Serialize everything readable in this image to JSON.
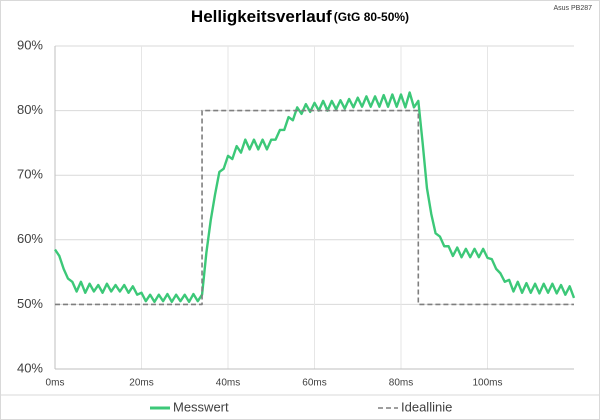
{
  "chart_data": {
    "type": "line",
    "title": "Helligkeitsverlauf",
    "subtitle": "(GtG 80-50%)",
    "source": "Asus PB287",
    "xlim": [
      0,
      120
    ],
    "xticks": [
      {
        "value": 0,
        "label": "0ms"
      },
      {
        "value": 20,
        "label": "20ms"
      },
      {
        "value": 40,
        "label": "40ms"
      },
      {
        "value": 60,
        "label": "60ms"
      },
      {
        "value": 80,
        "label": "80ms"
      },
      {
        "value": 100,
        "label": "100ms"
      }
    ],
    "ylim": [
      40,
      90
    ],
    "yticks": [
      {
        "value": 40,
        "label": "40%"
      },
      {
        "value": 50,
        "label": "50%"
      },
      {
        "value": 60,
        "label": "60%"
      },
      {
        "value": 70,
        "label": "70%"
      },
      {
        "value": 80,
        "label": "80%"
      },
      {
        "value": 90,
        "label": "90%"
      }
    ],
    "grid": true,
    "legend": "bottom",
    "series": [
      {
        "name": "Messwert",
        "color": "#3cc878",
        "dashed": false,
        "x": [
          0,
          1,
          2,
          3,
          4,
          5,
          6,
          7,
          8,
          9,
          10,
          11,
          12,
          13,
          14,
          15,
          16,
          17,
          18,
          19,
          20,
          21,
          22,
          23,
          24,
          25,
          26,
          27,
          28,
          29,
          30,
          31,
          32,
          33,
          34,
          35,
          36,
          37,
          38,
          39,
          40,
          41,
          42,
          43,
          44,
          45,
          46,
          47,
          48,
          49,
          50,
          51,
          52,
          53,
          54,
          55,
          56,
          57,
          58,
          59,
          60,
          61,
          62,
          63,
          64,
          65,
          66,
          67,
          68,
          69,
          70,
          71,
          72,
          73,
          74,
          75,
          76,
          77,
          78,
          79,
          80,
          81,
          82,
          83,
          84,
          85,
          86,
          87,
          88,
          89,
          90,
          91,
          92,
          93,
          94,
          95,
          96,
          97,
          98,
          99,
          100,
          101,
          102,
          103,
          104,
          105,
          106,
          107,
          108,
          109,
          110,
          111,
          112,
          113,
          114,
          115,
          116,
          117,
          118,
          119,
          120
        ],
        "values": [
          58.5,
          57.5,
          55.5,
          54,
          53.5,
          52,
          53.5,
          51.8,
          53.2,
          52,
          53,
          51.8,
          53.2,
          52,
          53,
          52,
          53,
          51.8,
          52.8,
          51.5,
          51.8,
          50.5,
          51.5,
          50.4,
          51.5,
          50.5,
          51.6,
          50.4,
          51.5,
          50.5,
          51.5,
          50.4,
          51.6,
          50.5,
          51.5,
          58,
          63,
          67,
          70.5,
          71,
          73,
          72.5,
          74.5,
          73.5,
          75.5,
          74,
          75.5,
          74,
          75.5,
          74,
          75.5,
          75.5,
          77,
          77,
          79,
          78.5,
          80.5,
          79.5,
          81,
          79.8,
          81.2,
          80,
          81.5,
          80,
          81.5,
          80.2,
          81.6,
          80.3,
          81.8,
          80.5,
          82,
          80.6,
          82.2,
          80.6,
          82.2,
          80.6,
          82.4,
          80.6,
          82.5,
          80.6,
          82.5,
          80.5,
          82.8,
          80.5,
          81.5,
          75,
          68,
          64,
          61,
          60.5,
          59,
          59,
          57.5,
          58.8,
          57.3,
          58.6,
          57.3,
          58.6,
          57.3,
          58.6,
          57.2,
          57,
          55.5,
          54.8,
          53.5,
          53.8,
          52,
          53.5,
          51.8,
          53.3,
          51.8,
          53.2,
          51.7,
          53.2,
          51.8,
          53.2,
          51.7,
          53,
          51.5,
          52.8,
          51
        ]
      },
      {
        "name": "Ideallinie",
        "color": "#7f7f7f",
        "dashed": true,
        "x": [
          0,
          34,
          34,
          84,
          84,
          120
        ],
        "values": [
          50,
          50,
          80,
          80,
          50,
          50
        ]
      }
    ]
  }
}
